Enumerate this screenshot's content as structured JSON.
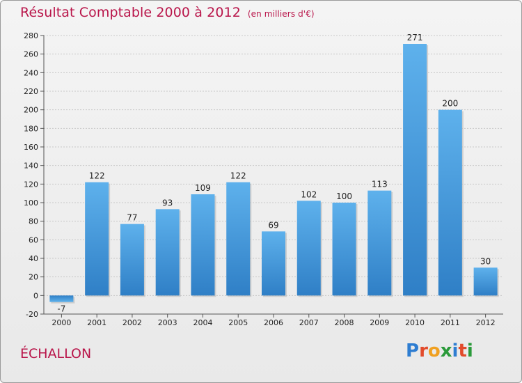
{
  "chart_data": {
    "type": "bar",
    "title": "Résultat Comptable 2000 à 2012",
    "subtitle": "(en milliers d'€)",
    "categories": [
      "2000",
      "2001",
      "2002",
      "2003",
      "2004",
      "2005",
      "2006",
      "2007",
      "2008",
      "2009",
      "2010",
      "2011",
      "2012"
    ],
    "values": [
      -7,
      122,
      77,
      93,
      109,
      122,
      69,
      102,
      100,
      113,
      271,
      200,
      30
    ],
    "ylim": [
      -20,
      280
    ],
    "yticks": [
      -20,
      0,
      20,
      40,
      60,
      80,
      100,
      120,
      140,
      160,
      180,
      200,
      220,
      240,
      260,
      280
    ],
    "grid": true,
    "bar_color": "#4a98d8"
  },
  "place_name": "ÉCHALLON",
  "logo": {
    "letters": [
      "P",
      "r",
      "o",
      "x",
      "i",
      "t",
      "i"
    ],
    "colors": [
      "#2e7dd1",
      "#e24b2b",
      "#f0a020",
      "#2a9a3a",
      "#2e7dd1",
      "#e24b2b",
      "#2a9a3a"
    ]
  }
}
